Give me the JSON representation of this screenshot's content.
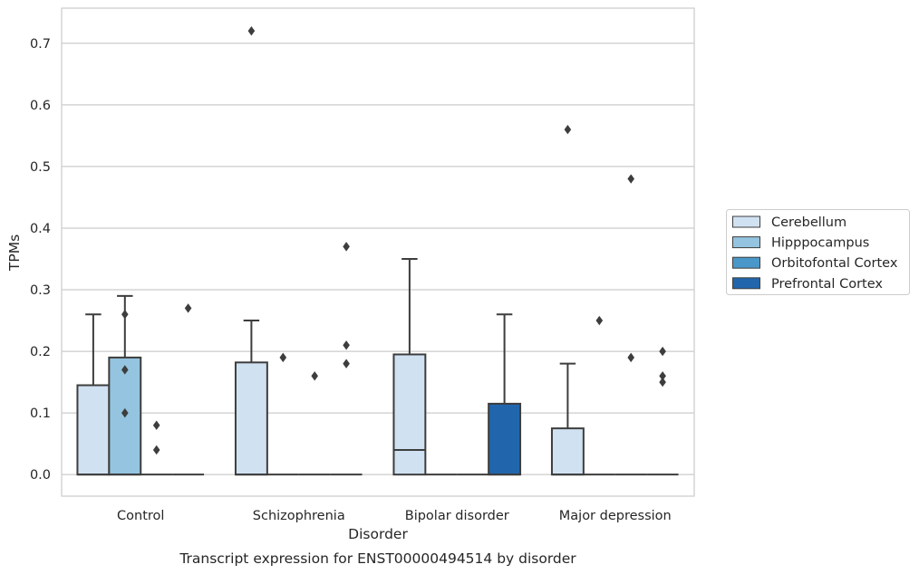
{
  "chart_data": {
    "type": "box",
    "title": "",
    "caption": "Transcript expression for ENST00000494514 by disorder",
    "xlabel": "Disorder",
    "ylabel": "TPMs",
    "ylim": [
      -0.035,
      0.757
    ],
    "yticks": [
      "0.0",
      "0.1",
      "0.2",
      "0.3",
      "0.4",
      "0.5",
      "0.6",
      "0.7"
    ],
    "grid": "horizontal",
    "legend_placement": "right",
    "categories": [
      "Control",
      "Schizophrenia",
      "Bipolar disorder",
      "Major depression"
    ],
    "series": [
      {
        "name": "Cerebellum",
        "color": "#d0e1f2",
        "boxes": [
          {
            "min": 0.0,
            "q1": 0.0,
            "median": 0.0,
            "q3": 0.145,
            "max": 0.26,
            "outliers": []
          },
          {
            "min": 0.0,
            "q1": 0.0,
            "median": 0.0,
            "q3": 0.182,
            "max": 0.25,
            "outliers": [
              0.72
            ]
          },
          {
            "min": 0.0,
            "q1": 0.0,
            "median": 0.04,
            "q3": 0.195,
            "max": 0.35,
            "outliers": []
          },
          {
            "min": 0.0,
            "q1": 0.0,
            "median": 0.0,
            "q3": 0.075,
            "max": 0.18,
            "outliers": [
              0.56
            ]
          }
        ]
      },
      {
        "name": "Hipppocampus",
        "color": "#94c4df",
        "boxes": [
          {
            "min": 0.0,
            "q1": 0.0,
            "median": 0.0,
            "q3": 0.19,
            "max": 0.29,
            "outliers": [
              0.26,
              0.17,
              0.1
            ]
          },
          {
            "min": 0.0,
            "q1": 0.0,
            "median": 0.0,
            "q3": 0.0,
            "max": 0.0,
            "outliers": [
              0.19
            ]
          },
          {
            "min": 0.0,
            "q1": 0.0,
            "median": 0.0,
            "q3": 0.0,
            "max": 0.0,
            "outliers": []
          },
          {
            "min": 0.0,
            "q1": 0.0,
            "median": 0.0,
            "q3": 0.0,
            "max": 0.0,
            "outliers": [
              0.25
            ]
          }
        ]
      },
      {
        "name": "Orbitofontal Cortex",
        "color": "#4a98c9",
        "boxes": [
          {
            "min": 0.0,
            "q1": 0.0,
            "median": 0.0,
            "q3": 0.0,
            "max": 0.0,
            "outliers": [
              0.08,
              0.04
            ]
          },
          {
            "min": 0.0,
            "q1": 0.0,
            "median": 0.0,
            "q3": 0.0,
            "max": 0.0,
            "outliers": [
              0.16
            ]
          },
          {
            "min": 0.0,
            "q1": 0.0,
            "median": 0.0,
            "q3": 0.0,
            "max": 0.0,
            "outliers": []
          },
          {
            "min": 0.0,
            "q1": 0.0,
            "median": 0.0,
            "q3": 0.0,
            "max": 0.0,
            "outliers": [
              0.48,
              0.19
            ]
          }
        ]
      },
      {
        "name": "Prefrontal Cortex",
        "color": "#2166ac",
        "boxes": [
          {
            "min": 0.0,
            "q1": 0.0,
            "median": 0.0,
            "q3": 0.0,
            "max": 0.0,
            "outliers": [
              0.27
            ]
          },
          {
            "min": 0.0,
            "q1": 0.0,
            "median": 0.0,
            "q3": 0.0,
            "max": 0.0,
            "outliers": [
              0.37,
              0.21,
              0.18
            ]
          },
          {
            "min": 0.0,
            "q1": 0.0,
            "median": 0.0,
            "q3": 0.115,
            "max": 0.26,
            "outliers": []
          },
          {
            "min": 0.0,
            "q1": 0.0,
            "median": 0.0,
            "q3": 0.0,
            "max": 0.0,
            "outliers": [
              0.2,
              0.16,
              0.15
            ]
          }
        ]
      }
    ]
  },
  "colors": {
    "grid": "#cccccc",
    "frame": "#cccccc",
    "line": "#3d3d3d",
    "text": "#262626"
  }
}
